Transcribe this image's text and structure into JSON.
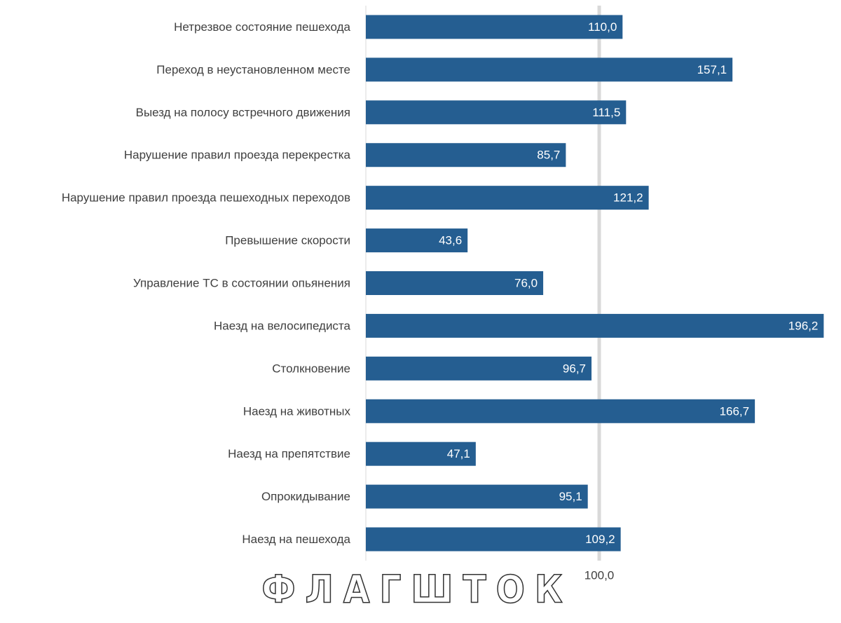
{
  "chart_data": {
    "type": "bar",
    "categories": [
      "Нетрезвое состояние пешехода",
      "Переход в неустановленном месте",
      "Выезд на полосу встречного движения",
      "Нарушение правил проезда перекрестка",
      "Нарушение правил проезда пешеходных переходов",
      "Превышение скорости",
      "Управление ТС в состоянии опьянения",
      "Наезд на велосипедиста",
      "Столкновение",
      "Наезд на животных",
      "Наезд на препятствие",
      "Опрокидывание",
      "Наезд на пешехода"
    ],
    "values": [
      110.0,
      157.1,
      111.5,
      85.7,
      121.2,
      43.6,
      76.0,
      196.2,
      96.7,
      166.7,
      47.1,
      95.1,
      109.2
    ],
    "value_labels": [
      "110,0",
      "157,1",
      "111,5",
      "85,7",
      "121,2",
      "43,6",
      "76,0",
      "196,2",
      "96,7",
      "166,7",
      "47,1",
      "95,1",
      "109,2"
    ],
    "color": "#255e91",
    "xlim": [
      0,
      200
    ],
    "xticks": [
      {
        "value": 100,
        "label": "100,0"
      }
    ],
    "grid": true
  },
  "watermark": "ФЛАГШТОК"
}
